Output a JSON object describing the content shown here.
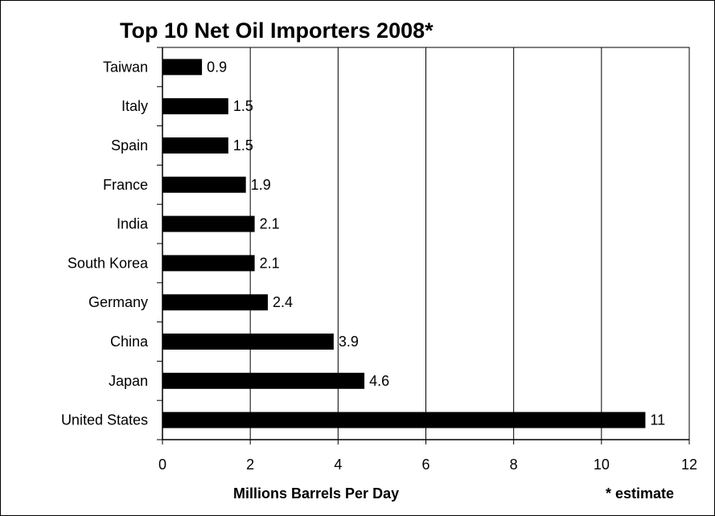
{
  "chart_data": {
    "type": "bar",
    "orientation": "horizontal",
    "title": "Top 10 Net Oil Importers 2008*",
    "xlabel": "Millions Barrels Per Day",
    "ylabel": "",
    "note": "* estimate",
    "categories": [
      "Taiwan",
      "Italy",
      "Spain",
      "France",
      "India",
      "South Korea",
      "Germany",
      "China",
      "Japan",
      "United States"
    ],
    "values": [
      0.9,
      1.5,
      1.5,
      1.9,
      2.1,
      2.1,
      2.4,
      3.9,
      4.6,
      11
    ],
    "value_labels": [
      "0.9",
      "1.5",
      "1.5",
      "1.9",
      "2.1",
      "2.1",
      "2.4",
      "3.9",
      "4.6",
      "11"
    ],
    "xlim": [
      0,
      12
    ],
    "xticks": [
      0,
      2,
      4,
      6,
      8,
      10,
      12
    ],
    "xtick_labels": [
      "0",
      "2",
      "4",
      "6",
      "8",
      "10",
      "12"
    ],
    "grid": "vertical",
    "legend": "none",
    "bar_color": "#000000",
    "grid_color": "#000000"
  }
}
